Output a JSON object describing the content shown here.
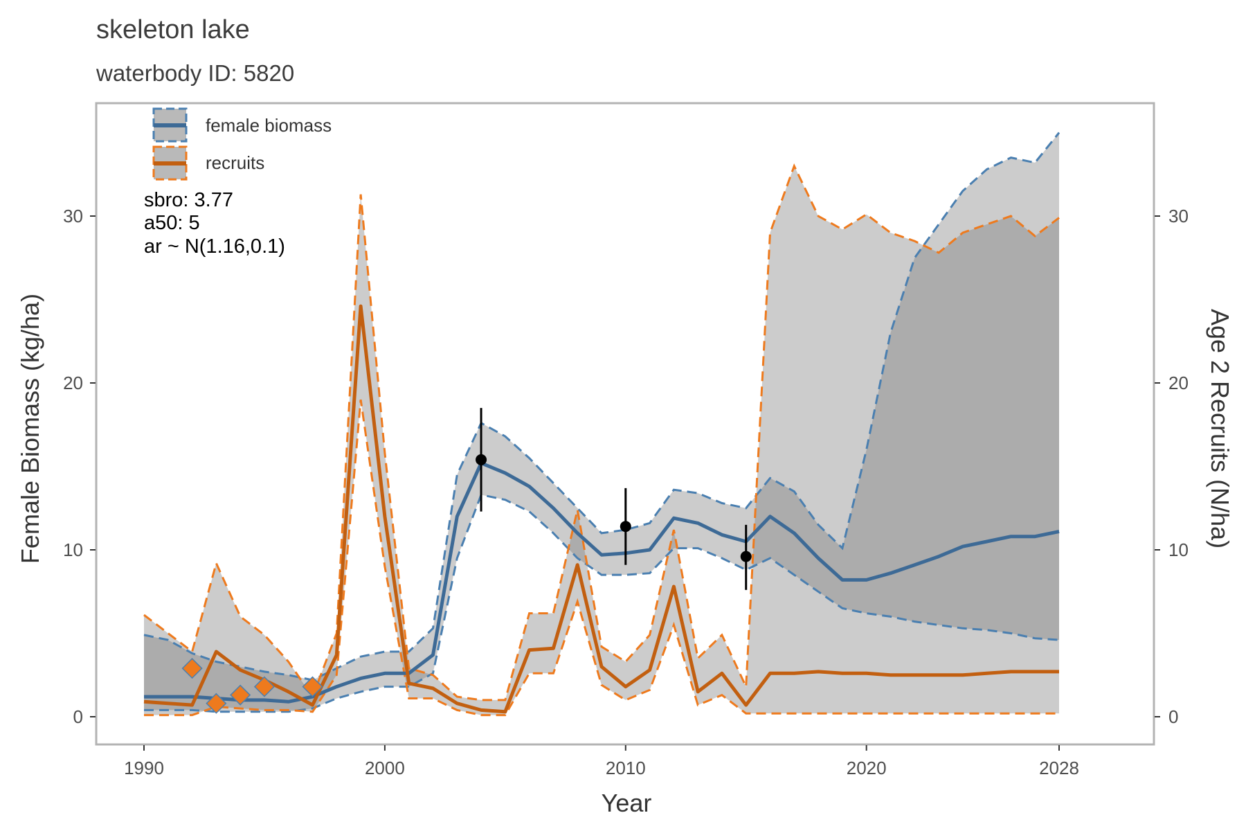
{
  "chart_data": {
    "type": "line",
    "title": "skeleton lake",
    "subtitle": "waterbody ID: 5820",
    "xlabel": "Year",
    "ylabel_left": "Female Biomass (kg/ha)",
    "ylabel_right": "Age 2 Recruits (N/ha)",
    "xlim": [
      1990,
      2028
    ],
    "ylim_left": [
      0,
      35
    ],
    "ylim_right": [
      0,
      35
    ],
    "x_ticks": [
      1990,
      2000,
      2010,
      2020,
      2028
    ],
    "y_ticks": [
      0,
      10,
      20,
      30
    ],
    "grid": false,
    "legend_position": "top-left",
    "legend": [
      {
        "label": "female biomass",
        "color": "#3d6a96",
        "dash_color": "#4a7fb0"
      },
      {
        "label": "recruits",
        "color": "#c25f10",
        "dash_color": "#ee7a1d"
      }
    ],
    "annotations": [
      "sbro: 3.77",
      "a50: 5",
      "ar ~ N(1.16,0.1)"
    ],
    "series": [
      {
        "name": "female biomass",
        "x": [
          1990,
          1991,
          1992,
          1993,
          1994,
          1995,
          1996,
          1997,
          1998,
          1999,
          2000,
          2001,
          2002,
          2003,
          2004,
          2005,
          2006,
          2007,
          2008,
          2009,
          2010,
          2011,
          2012,
          2013,
          2014,
          2015,
          2016,
          2017,
          2018,
          2019,
          2020,
          2021,
          2022,
          2023,
          2024,
          2025,
          2026,
          2027,
          2028
        ],
        "y": [
          1.2,
          1.2,
          1.2,
          1.1,
          1.0,
          1.0,
          0.9,
          1.2,
          1.8,
          2.3,
          2.6,
          2.6,
          3.7,
          12.0,
          15.2,
          14.6,
          13.8,
          12.5,
          11.0,
          9.7,
          9.8,
          10.0,
          11.9,
          11.6,
          10.9,
          10.5,
          12.0,
          11.0,
          9.5,
          8.2,
          8.2,
          8.6,
          9.1,
          9.6,
          10.2,
          10.5,
          10.8,
          10.8,
          11.1
        ],
        "lower": [
          0.4,
          0.4,
          0.4,
          0.3,
          0.3,
          0.3,
          0.3,
          0.5,
          1.1,
          1.5,
          1.8,
          1.8,
          2.6,
          9.5,
          13.3,
          13.0,
          12.3,
          11.0,
          9.5,
          8.5,
          8.5,
          8.6,
          10.1,
          10.1,
          9.5,
          8.8,
          9.5,
          8.5,
          7.5,
          6.5,
          6.2,
          6.0,
          5.7,
          5.5,
          5.3,
          5.2,
          5.0,
          4.7,
          4.6
        ],
        "upper": [
          4.9,
          4.6,
          3.8,
          3.3,
          3.0,
          2.7,
          2.5,
          2.2,
          2.9,
          3.6,
          3.9,
          3.9,
          5.3,
          14.5,
          17.6,
          16.8,
          15.5,
          14.0,
          12.5,
          11.0,
          11.2,
          11.6,
          13.6,
          13.4,
          12.8,
          12.5,
          14.3,
          13.5,
          11.5,
          10.1,
          16.0,
          23.0,
          27.5,
          29.5,
          31.5,
          32.8,
          33.5,
          33.2,
          35.0
        ]
      },
      {
        "name": "recruits",
        "x": [
          1990,
          1991,
          1992,
          1993,
          1994,
          1995,
          1996,
          1997,
          1998,
          1999,
          2000,
          2001,
          2002,
          2003,
          2004,
          2005,
          2006,
          2007,
          2008,
          2009,
          2010,
          2011,
          2012,
          2013,
          2014,
          2015,
          2016,
          2017,
          2018,
          2019,
          2020,
          2021,
          2022,
          2023,
          2024,
          2025,
          2026,
          2027,
          2028
        ],
        "y": [
          0.9,
          0.8,
          0.7,
          3.9,
          2.8,
          2.2,
          1.5,
          0.7,
          3.7,
          24.6,
          12.0,
          2.0,
          1.7,
          0.8,
          0.4,
          0.3,
          4.0,
          4.1,
          9.1,
          3.0,
          1.8,
          2.8,
          7.8,
          1.5,
          2.6,
          0.7,
          2.6,
          2.6,
          2.7,
          2.6,
          2.6,
          2.5,
          2.5,
          2.5,
          2.5,
          2.6,
          2.7,
          2.7,
          2.7
        ],
        "lower": [
          0.1,
          0.1,
          0.1,
          0.6,
          0.5,
          0.4,
          0.4,
          0.3,
          2.5,
          19.0,
          9.0,
          1.1,
          1.1,
          0.4,
          0.1,
          0.1,
          2.6,
          2.6,
          6.9,
          1.9,
          1.0,
          1.6,
          5.5,
          0.7,
          1.3,
          0.2,
          0.2,
          0.2,
          0.2,
          0.2,
          0.2,
          0.2,
          0.2,
          0.2,
          0.2,
          0.2,
          0.2,
          0.2,
          0.2
        ],
        "upper": [
          6.1,
          5.0,
          3.9,
          9.2,
          6.0,
          4.9,
          3.3,
          1.2,
          5.0,
          31.3,
          15.8,
          2.9,
          2.5,
          1.2,
          1.0,
          1.0,
          6.2,
          6.2,
          12.4,
          4.2,
          3.3,
          4.9,
          11.2,
          3.5,
          4.9,
          1.8,
          29.0,
          33.0,
          30.0,
          29.2,
          30.1,
          29.0,
          28.5,
          27.8,
          29.0,
          29.5,
          30.0,
          28.8,
          29.9
        ]
      },
      {
        "name": "biomass observations",
        "x": [
          2004,
          2010,
          2015
        ],
        "y": [
          15.4,
          11.4,
          9.6
        ],
        "lower": [
          12.3,
          9.1,
          7.6
        ],
        "upper": [
          18.5,
          13.7,
          11.5
        ]
      },
      {
        "name": "recruit observations",
        "x": [
          1992,
          1993,
          1994,
          1995,
          1997
        ],
        "y": [
          2.9,
          0.8,
          1.3,
          1.8,
          1.8
        ]
      }
    ]
  }
}
